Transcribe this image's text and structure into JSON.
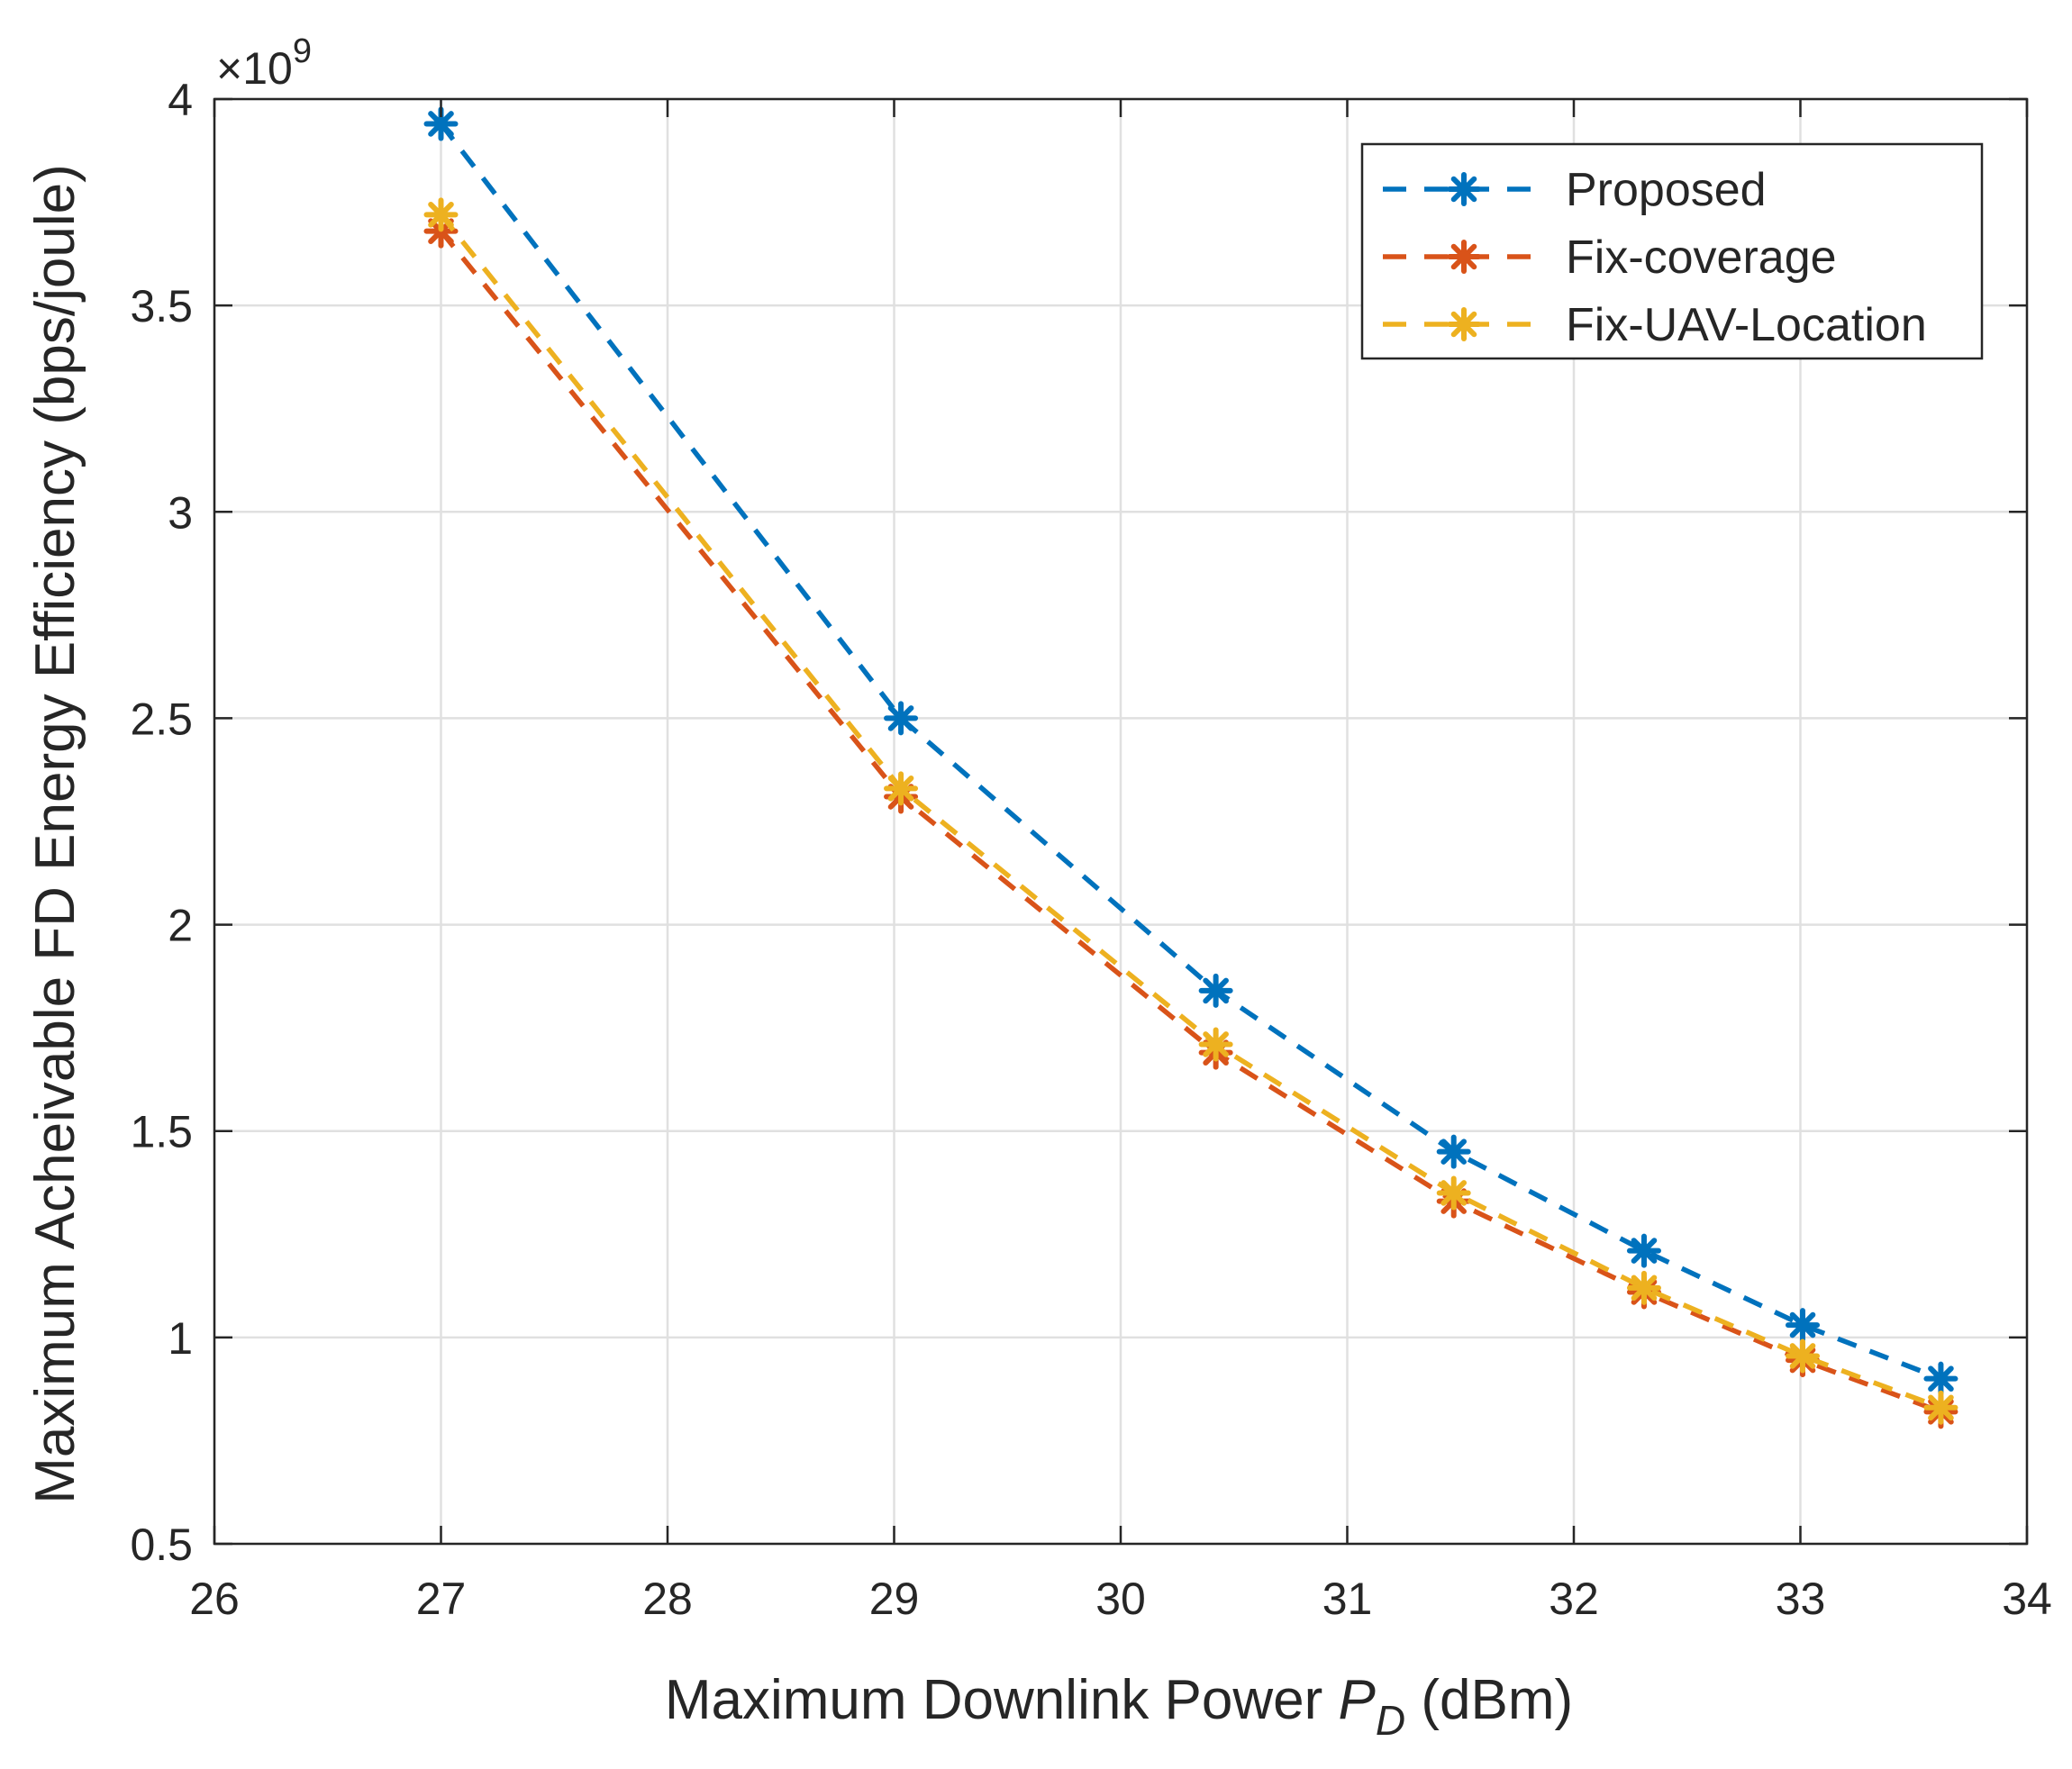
{
  "chart_data": {
    "type": "line",
    "title": "",
    "xlabel": {
      "pre": "Maximum Downlink Power ",
      "var": "P",
      "sub": "D",
      "post": " (dBm)"
    },
    "ylabel": "Maximum Acheivable FD Energy Efficiency (bps/joule)",
    "y_exponent_label": {
      "base": "×10",
      "exp": "9"
    },
    "xlim": [
      26,
      34
    ],
    "ylim": [
      0.5,
      4
    ],
    "xticks": [
      26,
      27,
      28,
      29,
      30,
      31,
      32,
      33,
      34
    ],
    "yticks": [
      0.5,
      1,
      1.5,
      2,
      2.5,
      3,
      3.5,
      4
    ],
    "ytick_labels": [
      "0.5",
      "1",
      "1.5",
      "2",
      "2.5",
      "3",
      "3.5",
      "4"
    ],
    "grid": true,
    "legend_position": "top-right",
    "x": [
      27,
      29.03,
      30.42,
      31.47,
      32.31,
      33.01,
      33.62
    ],
    "series": [
      {
        "name": "Proposed",
        "color": "#0072BD",
        "marker": "asterisk",
        "linestyle": "dashed",
        "values": [
          3.94,
          2.5,
          1.84,
          1.45,
          1.21,
          1.03,
          0.9
        ]
      },
      {
        "name": "Fix-coverage",
        "color": "#D95319",
        "marker": "asterisk",
        "linestyle": "dashed",
        "values": [
          3.68,
          2.31,
          1.69,
          1.33,
          1.11,
          0.945,
          0.82
        ]
      },
      {
        "name": "Fix-UAV-Location",
        "color": "#EDB120",
        "marker": "asterisk",
        "linestyle": "dashed",
        "values": [
          3.72,
          2.33,
          1.71,
          1.35,
          1.12,
          0.955,
          0.83
        ]
      }
    ]
  }
}
